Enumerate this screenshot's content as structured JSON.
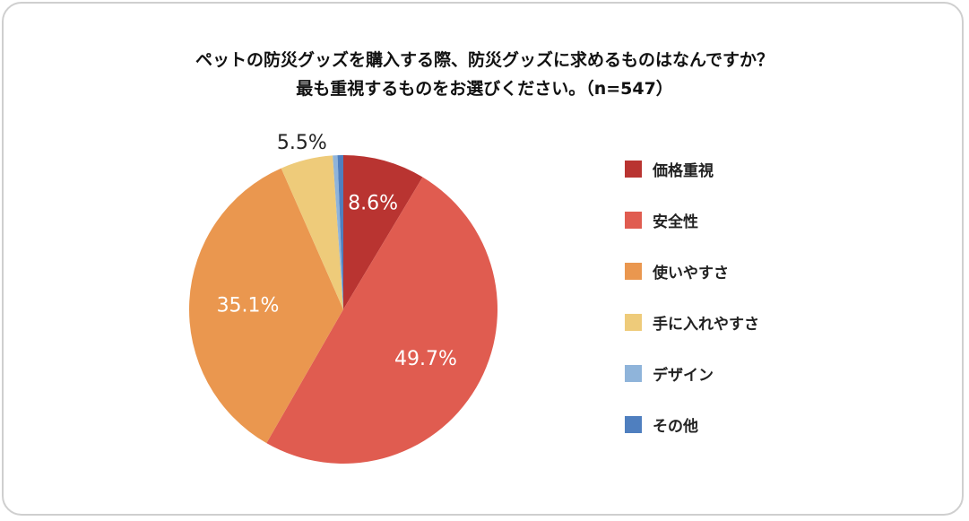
{
  "chart_data": {
    "type": "pie",
    "title": [
      "ペットの防災グッズを購入する際、防災グッズに求めるものはなんですか？",
      "最も重視するものをお選びください。（n=547）"
    ],
    "categories": [
      "価格重視",
      "安全性",
      "使いやすさ",
      "手に入れやすさ",
      "デザイン",
      "その他"
    ],
    "values": [
      8.6,
      49.7,
      35.1,
      5.5,
      0.5,
      0.6
    ],
    "labels": [
      "8.6%",
      "49.7%",
      "35.1%",
      "5.5%",
      "",
      ""
    ],
    "colors": [
      "#b93431",
      "#e05c50",
      "#ea974f",
      "#eecb7a",
      "#8fb4da",
      "#4f7fbf"
    ],
    "legend_position": "right",
    "start": "top",
    "direction": "clockwise"
  }
}
